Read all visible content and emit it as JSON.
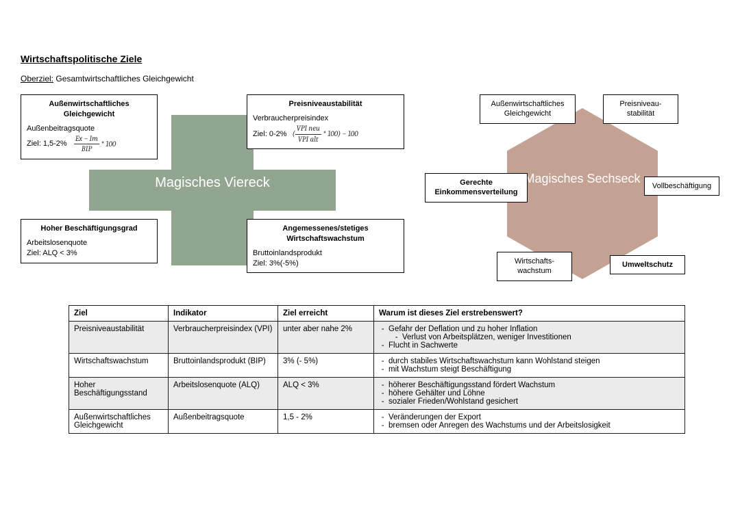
{
  "colors": {
    "green": "#92a591",
    "brown": "#c4a293",
    "shade": "#ebebeb"
  },
  "title": "Wirtschaftspolitische Ziele",
  "subtitle_label": "Oberziel:",
  "subtitle_text": "Gesamtwirtschaftliches Gleichgewicht",
  "viereck": {
    "center": "Magisches Viereck",
    "boxes": {
      "tl": {
        "title": "Außenwirtschaftliches Gleichgewicht",
        "l1": "Außenbeitragsquote",
        "l2": "Ziel: 1,5-2%",
        "formula": "(Ex − Im) / BIP * 100"
      },
      "tr": {
        "title": "Preisniveaustabilität",
        "l1": "Verbraucherpreisindex",
        "l2": "Ziel: 0-2%",
        "formula": "(VPI neu / VPI alt * 100) − 100"
      },
      "bl": {
        "title": "Hoher Beschäftigungsgrad",
        "l1": "Arbeitslosenquote",
        "l2": "Ziel: ALQ < 3%"
      },
      "br": {
        "title": "Angemessenes/stetiges Wirtschaftswachstum",
        "l1": "Bruttoinlandsprodukt",
        "l2": "Ziel: 3%(-5%)"
      }
    }
  },
  "sechseck": {
    "center": "Magisches Sechseck",
    "nodes": {
      "top_left": "Außenwirtschaftliches Gleichgewicht",
      "top_right": "Preisniveau-\nstabilität",
      "mid_left": "Gerechte Einkommensverteilung",
      "mid_right": "Vollbeschäftigung",
      "bot_left": "Wirtschafts-\nwachstum",
      "bot_right": "Umweltschutz"
    }
  },
  "table": {
    "columns": [
      "Ziel",
      "Indikator",
      "Ziel erreicht",
      "Warum ist dieses Ziel erstrebenswert?"
    ],
    "col_widths": [
      "145px",
      "160px",
      "140px",
      "auto"
    ],
    "rows": [
      {
        "shaded": true,
        "ziel": "Preisniveaustabilität",
        "indikator": "Verbraucherpreisindex (VPI)",
        "erreicht": "unter aber nahe 2%",
        "warum": [
          "Gefahr der Deflation und zu hoher Inflation",
          [
            "Verlust von Arbeitsplätzen, weniger Investitionen"
          ],
          "Flucht in Sachwerte"
        ]
      },
      {
        "shaded": false,
        "ziel": "Wirtschaftswachstum",
        "indikator": "Bruttoinlandsprodukt (BIP)",
        "erreicht": "3% (- 5%)",
        "warum": [
          "durch stabiles Wirtschaftswachstum kann Wohlstand steigen",
          "mit Wachstum steigt Beschäftigung"
        ]
      },
      {
        "shaded": true,
        "ziel": "Hoher Beschäftigungsstand",
        "indikator": "Arbeitslosenquote (ALQ)",
        "erreicht": "ALQ < 3%",
        "warum": [
          "höherer Beschäftigungsstand fördert Wachstum",
          "höhere Gehälter und Löhne",
          "sozialer Frieden/Wohlstand gesichert"
        ]
      },
      {
        "shaded": false,
        "ziel": "Außenwirtschaftliches Gleichgewicht",
        "indikator": "Außenbeitragsquote",
        "erreicht": "1,5 - 2%",
        "warum": [
          "Veränderungen der Export",
          "bremsen oder Anregen des Wachstums und der Arbeitslosigkeit"
        ]
      }
    ]
  }
}
